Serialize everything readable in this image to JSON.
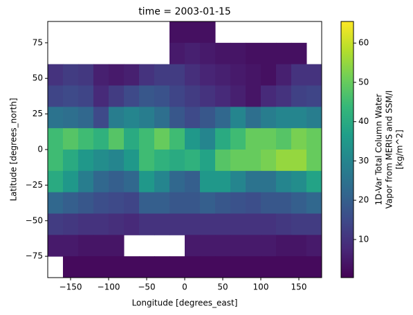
{
  "chart_data": {
    "type": "heatmap",
    "title": "time = 2003-01-15",
    "xlabel": "Longitude [degrees_east]",
    "ylabel": "Latitude [degrees_north]",
    "colorbar_label": [
      "1D-Var Total Column Water",
      "Vapor from MERIS and SSM/I",
      "[kg/m^2]"
    ],
    "colormap": "viridis",
    "x": [
      -170,
      -150,
      -130,
      -110,
      -90,
      -70,
      -50,
      -30,
      -10,
      10,
      30,
      50,
      70,
      90,
      110,
      130,
      150,
      170
    ],
    "y": [
      82.5,
      67.5,
      52.5,
      37.5,
      22.5,
      7.5,
      -7.5,
      -22.5,
      -37.5,
      -52.5,
      -67.5,
      -82.5
    ],
    "values": [
      [
        null,
        null,
        null,
        null,
        null,
        null,
        null,
        null,
        3,
        3,
        3,
        null,
        null,
        null,
        null,
        null,
        null,
        null
      ],
      [
        null,
        null,
        null,
        null,
        null,
        null,
        null,
        null,
        5,
        6,
        5,
        4,
        4,
        3,
        3,
        3,
        3,
        null
      ],
      [
        10,
        12,
        11,
        6,
        5,
        6,
        10,
        12,
        12,
        9,
        7,
        6,
        5,
        4,
        3,
        6,
        10,
        10
      ],
      [
        14,
        15,
        14,
        8,
        12,
        15,
        18,
        17,
        14,
        12,
        10,
        8,
        6,
        4,
        8,
        10,
        13,
        14
      ],
      [
        25,
        24,
        22,
        15,
        28,
        30,
        28,
        24,
        18,
        15,
        18,
        22,
        30,
        24,
        28,
        30,
        30,
        28
      ],
      [
        45,
        48,
        45,
        42,
        48,
        40,
        45,
        50,
        45,
        35,
        30,
        40,
        45,
        50,
        50,
        48,
        52,
        50
      ],
      [
        45,
        40,
        35,
        32,
        30,
        35,
        45,
        42,
        40,
        42,
        38,
        48,
        50,
        50,
        52,
        55,
        55,
        50
      ],
      [
        40,
        35,
        28,
        22,
        20,
        22,
        35,
        30,
        22,
        20,
        35,
        35,
        30,
        25,
        25,
        30,
        32,
        38
      ],
      [
        22,
        20,
        18,
        16,
        15,
        14,
        20,
        20,
        18,
        18,
        20,
        18,
        17,
        16,
        18,
        18,
        20,
        22
      ],
      [
        12,
        11,
        10,
        10,
        9,
        8,
        10,
        10,
        10,
        10,
        10,
        10,
        10,
        10,
        10,
        11,
        12,
        12
      ],
      [
        5,
        5,
        4,
        4,
        4,
        null,
        null,
        null,
        null,
        5,
        5,
        5,
        5,
        5,
        5,
        4,
        4,
        5
      ],
      [
        null,
        2,
        2,
        2,
        2,
        2,
        2,
        2,
        2,
        2,
        2,
        2,
        2,
        2,
        2,
        2,
        2,
        2
      ]
    ],
    "xlim": [
      -180,
      180
    ],
    "ylim": [
      -90,
      90
    ],
    "xticks": [
      {
        "value": -150,
        "label": "−150"
      },
      {
        "value": -100,
        "label": "−100"
      },
      {
        "value": -50,
        "label": "−50"
      },
      0,
      50,
      100,
      150
    ],
    "yticks": [
      {
        "value": -75,
        "label": "−75"
      },
      {
        "value": -50,
        "label": "−50"
      },
      {
        "value": -25,
        "label": "−25"
      },
      0,
      25,
      50,
      75
    ],
    "clim": [
      0.3,
      65.5
    ],
    "cticks": [
      10,
      20,
      30,
      40,
      50,
      60
    ]
  }
}
